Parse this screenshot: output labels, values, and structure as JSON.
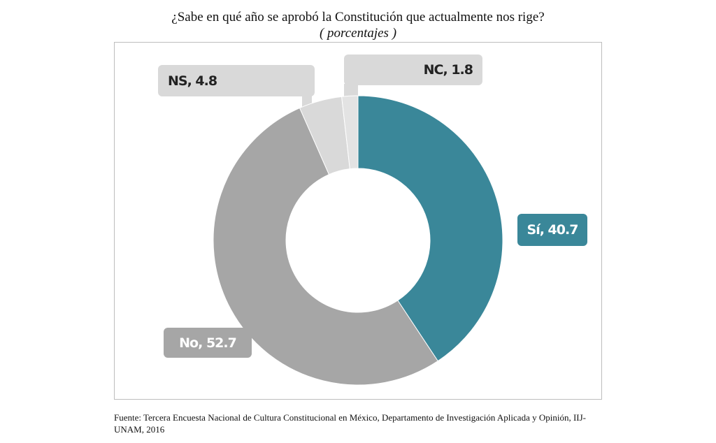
{
  "chart_data": {
    "type": "pie",
    "variant": "donut",
    "title": "¿Sabe en qué año se aprobó la Constitución que actualmente nos rige?",
    "subtitle": "( porcentajes )",
    "categories": [
      "Sí",
      "No",
      "NS",
      "NC"
    ],
    "values": [
      40.7,
      52.7,
      4.8,
      1.8
    ],
    "colors": [
      "#3a8799",
      "#a6a6a6",
      "#d9d9d9",
      "#e3e3e3"
    ],
    "labels": [
      "Sí, 40.7",
      "No, 52.7",
      "NS, 4.8",
      "NC, 1.8"
    ],
    "unit": "%"
  },
  "source": "Fuente: Tercera Encuesta Nacional de Cultura Constitucional en México, Departamento de Investigación Aplicada y Opinión, IIJ-UNAM,  2016"
}
